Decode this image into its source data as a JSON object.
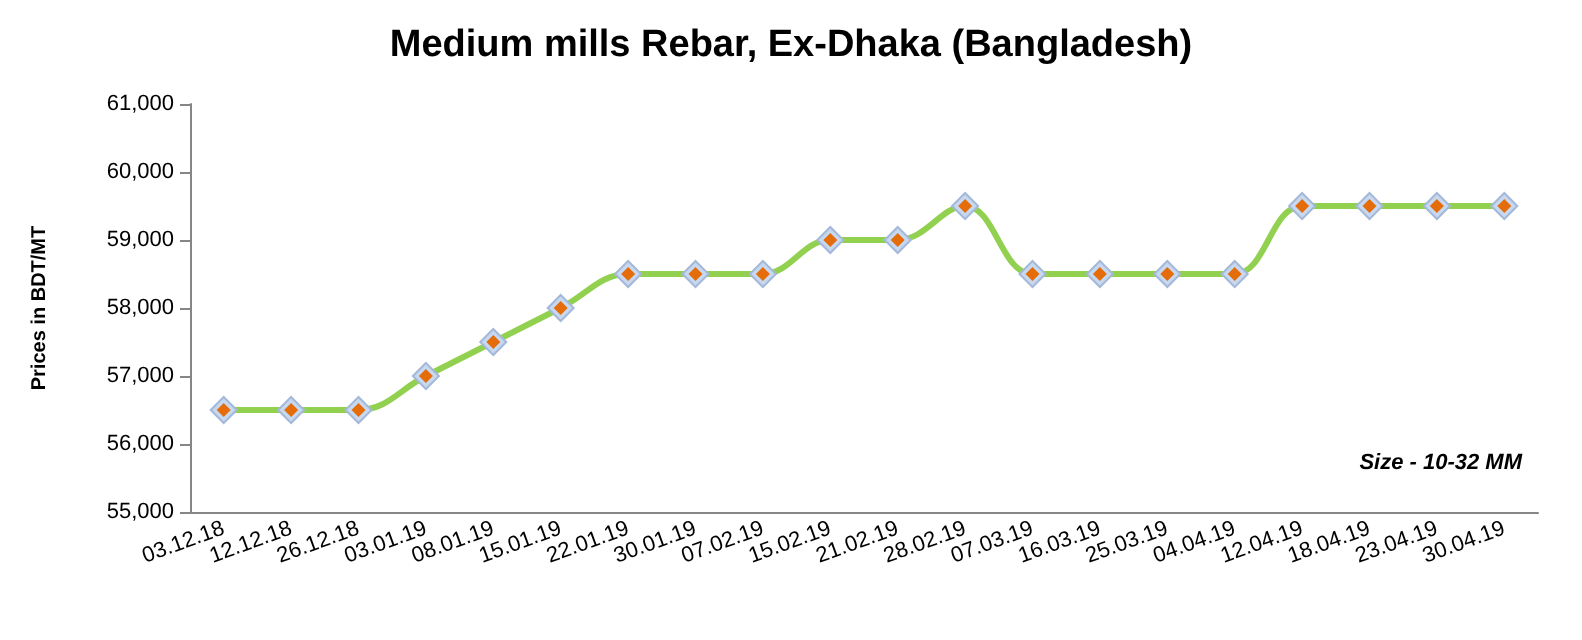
{
  "chart_data": {
    "type": "line",
    "title": "Medium mills Rebar, Ex-Dhaka (Bangladesh)",
    "ylabel": "Prices in BDT/MT",
    "categories": [
      "03.12.18",
      "12.12.18",
      "26.12.18",
      "03.01.19",
      "08.01.19",
      "15.01.19",
      "22.01.19",
      "30.01.19",
      "07.02.19",
      "15.02.19",
      "21.02.19",
      "28.02.19",
      "07.03.19",
      "16.03.19",
      "25.03.19",
      "04.04.19",
      "12.04.19",
      "18.04.19",
      "23.04.19",
      "30.04.19"
    ],
    "series": [
      {
        "color": "#92d050",
        "values": [
          56500,
          56500,
          56500,
          57000,
          57500,
          58000,
          58500,
          58500,
          58500,
          59000,
          59000,
          59500,
          58500,
          58500,
          58500,
          58500,
          59500,
          59500,
          59500,
          59500
        ]
      }
    ],
    "ylim": [
      55000,
      61000
    ],
    "yticks": [
      {
        "value": 55000,
        "label": "55,000"
      },
      {
        "value": 56000,
        "label": "56,000"
      },
      {
        "value": 57000,
        "label": "57,000"
      },
      {
        "value": 58000,
        "label": "58,000"
      },
      {
        "value": 59000,
        "label": "59,000"
      },
      {
        "value": 60000,
        "label": "60,000"
      },
      {
        "value": 61000,
        "label": "61,000"
      }
    ],
    "annotations": [
      "Size - 10-32 MM"
    ],
    "marker": "diamond"
  }
}
